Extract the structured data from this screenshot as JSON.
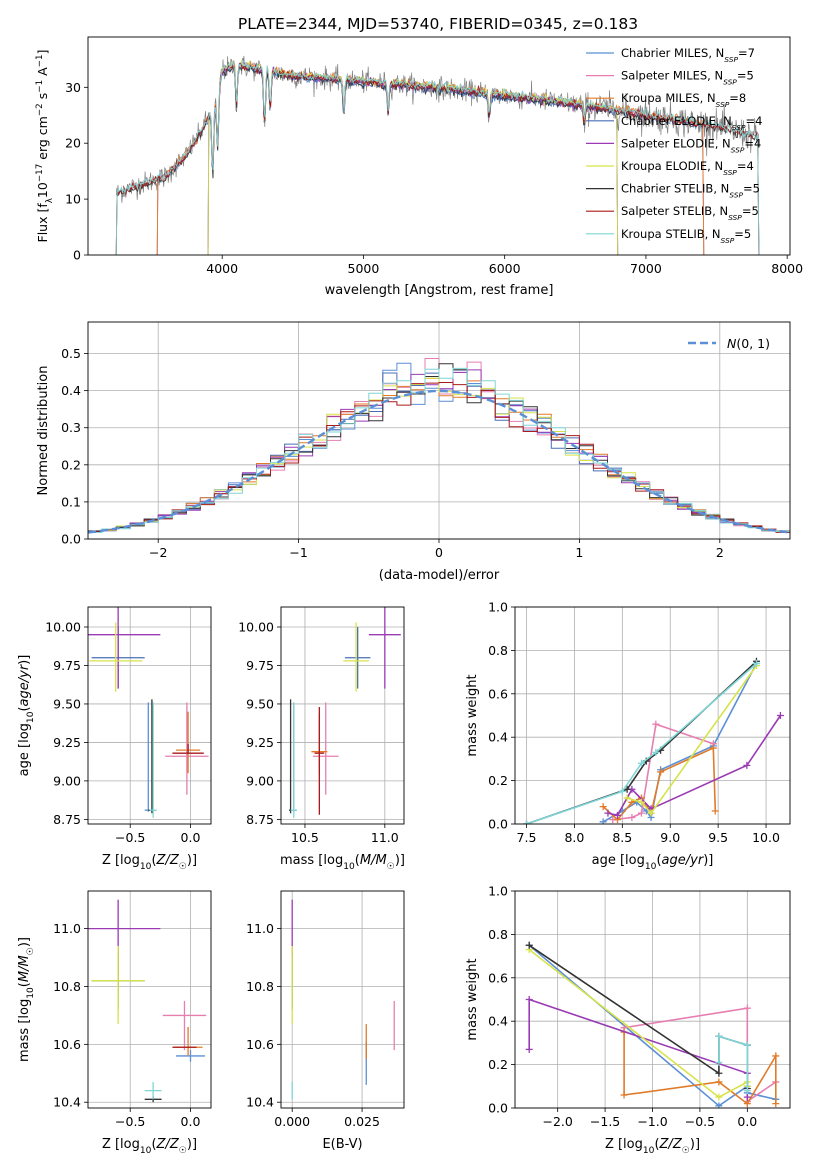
{
  "figure_title": "PLATE=2344, MJD=53740, FIBERID=0345, z=0.183",
  "colors": {
    "Chabrier MILES": "#5b8fd6",
    "Salpeter MILES": "#e67fb0",
    "Kroupa MILES": "#e07b2a",
    "Chabrier ELODIE": "#4a6fb8",
    "Salpeter ELODIE": "#9a3ab5",
    "Kroupa ELODIE": "#d6e34a",
    "Chabrier STELIB": "#333333",
    "Salpeter STELIB": "#aa1a1a",
    "Kroupa STELIB": "#7fd6d6",
    "observed": "#808080",
    "gaussian": "#5b8fd6",
    "grid": "#b0b0b0"
  },
  "chart_data": [
    {
      "id": "spectrum",
      "type": "line",
      "title": "",
      "xlabel": "wavelength [Angstrom, rest frame]",
      "ylabel": "Flux [f_λ10^-17 erg cm^-2 s^-1 A^-1]",
      "xlim": [
        3050,
        8020
      ],
      "ylim": [
        0,
        39
      ],
      "xticks": [
        4000,
        5000,
        6000,
        7000,
        8000
      ],
      "yticks": [
        0,
        10,
        20,
        30
      ],
      "grid": false,
      "legend_position": "top-right",
      "legend": [
        "Chabrier MILES, N_SSP=7",
        "Salpeter MILES, N_SSP=5",
        "Kroupa MILES, N_SSP=8",
        "Chabrier ELODIE, N_SSP=4",
        "Salpeter ELODIE, N_SSP=4",
        "Kroupa ELODIE, N_SSP=4",
        "Chabrier STELIB, N_SSP=5",
        "Salpeter STELIB, N_SSP=5",
        "Kroupa STELIB, N_SSP=5"
      ],
      "continuum": {
        "x": [
          3250,
          3400,
          3600,
          3750,
          3850,
          3950,
          4000,
          4100,
          4300,
          4500,
          4800,
          5000,
          5500,
          6000,
          6500,
          7000,
          7500,
          7800
        ],
        "y": [
          11,
          12.5,
          14,
          18,
          22,
          27,
          33,
          34,
          33,
          32,
          31.5,
          31,
          30,
          28.5,
          27,
          25,
          23,
          21
        ]
      },
      "absorption_lines": [
        {
          "x": 3933,
          "depth": 12
        },
        {
          "x": 3968,
          "depth": 10
        },
        {
          "x": 4101,
          "depth": 7
        },
        {
          "x": 4300,
          "depth": 10
        },
        {
          "x": 4340,
          "depth": 7
        },
        {
          "x": 4861,
          "depth": 6
        },
        {
          "x": 5175,
          "depth": 5
        },
        {
          "x": 5890,
          "depth": 4
        },
        {
          "x": 6563,
          "depth": 3
        }
      ],
      "model_ranges": [
        {
          "series": "Chabrier MILES",
          "x": [
            3540,
            7410
          ]
        },
        {
          "series": "Salpeter MILES",
          "x": [
            3540,
            7410
          ]
        },
        {
          "series": "Kroupa MILES",
          "x": [
            3540,
            7410
          ]
        },
        {
          "series": "Chabrier ELODIE",
          "x": [
            3900,
            6800
          ]
        },
        {
          "series": "Salpeter ELODIE",
          "x": [
            3900,
            6800
          ]
        },
        {
          "series": "Kroupa ELODIE",
          "x": [
            3900,
            6800
          ]
        },
        {
          "series": "Chabrier STELIB",
          "x": [
            3250,
            7800
          ]
        },
        {
          "series": "Salpeter STELIB",
          "x": [
            3250,
            7800
          ]
        },
        {
          "series": "Kroupa STELIB",
          "x": [
            3250,
            7800
          ]
        }
      ]
    },
    {
      "id": "residuals",
      "type": "line",
      "xlabel": "(data-model)/error",
      "ylabel": "Normed distribution",
      "xlim": [
        -2.5,
        2.5
      ],
      "ylim": [
        0,
        0.585
      ],
      "xticks": [
        -2,
        -1,
        0,
        1,
        2
      ],
      "yticks": [
        0.0,
        0.1,
        0.2,
        0.3,
        0.4,
        0.5
      ],
      "grid": true,
      "legend_position": "top-right",
      "legend": [
        "N(0,1)"
      ],
      "bin_width": 0.1
    },
    {
      "id": "age_vs_Z",
      "type": "scatter",
      "xlabel": "Z [log10(Z/Z☉)]",
      "ylabel": "age [log10(age/yr)]",
      "xlim": [
        -0.85,
        0.17
      ],
      "ylim": [
        8.72,
        10.13
      ],
      "xticks": [
        -0.5,
        0.0
      ],
      "yticks": [
        8.75,
        9.0,
        9.25,
        9.5,
        9.75,
        10.0
      ],
      "grid": true,
      "points": [
        {
          "series": "Chabrier MILES",
          "x": -0.35,
          "y": 8.81,
          "xerr": 0.03,
          "yerr": [
            0.01,
            0.7
          ]
        },
        {
          "series": "Salpeter MILES",
          "x": -0.03,
          "y": 9.16,
          "xerr": 0.18,
          "yerr": [
            0.25,
            0.35
          ]
        },
        {
          "series": "Kroupa MILES",
          "x": -0.02,
          "y": 9.2,
          "xerr": 0.1,
          "yerr": [
            0.15,
            0.25
          ]
        },
        {
          "series": "Chabrier ELODIE",
          "x": -0.6,
          "y": 9.8,
          "xerr": 0.22,
          "yerr": [
            0.2,
            0.2
          ]
        },
        {
          "series": "Salpeter ELODIE",
          "x": -0.6,
          "y": 9.95,
          "xerr": 0.35,
          "yerr": [
            0.35,
            0.18
          ]
        },
        {
          "series": "Kroupa ELODIE",
          "x": -0.62,
          "y": 9.78,
          "xerr": 0.22,
          "yerr": [
            0.2,
            0.25
          ]
        },
        {
          "series": "Chabrier STELIB",
          "x": -0.32,
          "y": 8.81,
          "xerr": 0.03,
          "yerr": [
            0.02,
            0.72
          ]
        },
        {
          "series": "Salpeter STELIB",
          "x": -0.02,
          "y": 9.18,
          "xerr": 0.13,
          "yerr": [
            0.0,
            0.06
          ]
        },
        {
          "series": "Kroupa STELIB",
          "x": -0.31,
          "y": 8.81,
          "xerr": 0.03,
          "yerr": [
            0.05,
            0.7
          ]
        }
      ]
    },
    {
      "id": "age_vs_mass",
      "type": "scatter",
      "xlabel": "mass [log10(M/M☉)]",
      "ylabel": "",
      "xlim": [
        10.35,
        11.12
      ],
      "ylim": [
        8.72,
        10.13
      ],
      "xticks": [
        10.5,
        11.0
      ],
      "yticks": [
        8.75,
        9.0,
        9.25,
        9.5,
        9.75,
        10.0
      ],
      "grid": true,
      "points": [
        {
          "series": "Chabrier MILES",
          "x": 10.43,
          "y": 8.81,
          "xerr": 0.02,
          "yerr": [
            0.01,
            0.7
          ]
        },
        {
          "series": "Salpeter MILES",
          "x": 10.63,
          "y": 9.16,
          "xerr": 0.08,
          "yerr": [
            0.25,
            0.35
          ]
        },
        {
          "series": "Kroupa MILES",
          "x": 10.59,
          "y": 9.19,
          "xerr": 0.05,
          "yerr": [
            0.15,
            0.25
          ]
        },
        {
          "series": "Chabrier ELODIE",
          "x": 10.83,
          "y": 9.8,
          "xerr": 0.08,
          "yerr": [
            0.2,
            0.2
          ]
        },
        {
          "series": "Salpeter ELODIE",
          "x": 11.0,
          "y": 9.95,
          "xerr": 0.1,
          "yerr": [
            0.35,
            0.18
          ]
        },
        {
          "series": "Kroupa ELODIE",
          "x": 10.82,
          "y": 9.78,
          "xerr": 0.08,
          "yerr": [
            0.2,
            0.25
          ]
        },
        {
          "series": "Chabrier STELIB",
          "x": 10.41,
          "y": 8.81,
          "xerr": 0.01,
          "yerr": [
            0.02,
            0.72
          ]
        },
        {
          "series": "Salpeter STELIB",
          "x": 10.59,
          "y": 9.18,
          "xerr": 0.03,
          "yerr": [
            0.4,
            0.3
          ]
        },
        {
          "series": "Kroupa STELIB",
          "x": 10.43,
          "y": 8.81,
          "xerr": 0.02,
          "yerr": [
            0.05,
            0.7
          ]
        }
      ]
    },
    {
      "id": "massweight_vs_age",
      "type": "line",
      "xlabel": "age [log10(age/yr)]",
      "ylabel": "mass weight",
      "xlim": [
        7.38,
        10.25
      ],
      "ylim": [
        0.0,
        1.0
      ],
      "xticks": [
        7.5,
        8.0,
        8.5,
        9.0,
        9.5,
        10.0
      ],
      "yticks": [
        0.0,
        0.2,
        0.4,
        0.6,
        0.8,
        1.0
      ],
      "grid": true,
      "series": [
        {
          "name": "Chabrier MILES",
          "x": [
            8.3,
            8.5,
            8.65,
            8.75,
            8.8,
            8.9,
            9.45,
            9.9
          ],
          "y": [
            0.01,
            0.06,
            0.1,
            0.06,
            0.03,
            0.25,
            0.36,
            0.74
          ]
        },
        {
          "name": "Salpeter MILES",
          "x": [
            8.4,
            8.6,
            8.7,
            8.85,
            9.45
          ],
          "y": [
            0.02,
            0.03,
            0.05,
            0.46,
            0.37
          ]
        },
        {
          "name": "Kroupa MILES",
          "x": [
            8.3,
            8.45,
            8.6,
            8.7,
            8.8,
            8.9,
            9.45,
            9.47
          ],
          "y": [
            0.08,
            0.02,
            0.1,
            0.12,
            0.05,
            0.24,
            0.35,
            0.06
          ]
        },
        {
          "name": "Salpeter ELODIE",
          "x": [
            8.35,
            8.45,
            8.6,
            8.8,
            9.8,
            10.15
          ],
          "y": [
            0.05,
            0.04,
            0.16,
            0.07,
            0.27,
            0.5
          ]
        },
        {
          "name": "Kroupa ELODIE",
          "x": [
            8.55,
            8.7,
            8.8,
            9.9
          ],
          "y": [
            0.12,
            0.1,
            0.05,
            0.73
          ]
        },
        {
          "name": "Chabrier STELIB",
          "x": [
            7.5,
            8.55,
            8.75,
            8.9,
            9.9
          ],
          "y": [
            0.0,
            0.16,
            0.29,
            0.34,
            0.75
          ]
        },
        {
          "name": "Kroupa STELIB",
          "x": [
            7.5,
            8.5,
            8.7,
            8.85,
            9.9
          ],
          "y": [
            0.0,
            0.15,
            0.28,
            0.33,
            0.74
          ]
        }
      ]
    },
    {
      "id": "mass_vs_Z",
      "type": "scatter",
      "xlabel": "Z [log10(Z/Z☉)]",
      "ylabel": "mass [log10(M/M☉)]",
      "xlim": [
        -0.85,
        0.17
      ],
      "ylim": [
        10.38,
        11.13
      ],
      "xticks": [
        -0.5,
        0.0
      ],
      "yticks": [
        10.4,
        10.6,
        10.8,
        11.0
      ],
      "grid": true,
      "points": [
        {
          "series": "Chabrier MILES",
          "x": 0.0,
          "y": 10.56,
          "xerr": 0.12,
          "yerr": [
            0.02,
            0.02
          ]
        },
        {
          "series": "Salpeter MILES",
          "x": -0.05,
          "y": 10.7,
          "xerr": 0.18,
          "yerr": [
            0.12,
            0.05
          ]
        },
        {
          "series": "Kroupa MILES",
          "x": -0.02,
          "y": 10.59,
          "xerr": 0.12,
          "yerr": [
            0.03,
            0.07
          ]
        },
        {
          "series": "Chabrier ELODIE",
          "x": -0.6,
          "y": 10.82,
          "xerr": 0.22,
          "yerr": [
            0.1,
            0.1
          ]
        },
        {
          "series": "Salpeter ELODIE",
          "x": -0.6,
          "y": 11.0,
          "xerr": 0.35,
          "yerr": [
            0.2,
            0.1
          ]
        },
        {
          "series": "Kroupa ELODIE",
          "x": -0.6,
          "y": 10.82,
          "xerr": 0.22,
          "yerr": [
            0.15,
            0.12
          ]
        },
        {
          "series": "Chabrier STELIB",
          "x": -0.31,
          "y": 10.41,
          "xerr": 0.07,
          "yerr": [
            0.01,
            0.01
          ]
        },
        {
          "series": "Salpeter STELIB",
          "x": -0.05,
          "y": 10.59,
          "xerr": 0.1,
          "yerr": [
            0.0,
            0.0
          ]
        },
        {
          "series": "Kroupa STELIB",
          "x": -0.31,
          "y": 10.44,
          "xerr": 0.07,
          "yerr": [
            0.03,
            0.03
          ]
        }
      ]
    },
    {
      "id": "mass_vs_EBV",
      "type": "scatter",
      "xlabel": "E(B-V)",
      "ylabel": "",
      "xlim": [
        -0.004,
        0.04
      ],
      "ylim": [
        10.38,
        11.13
      ],
      "xticks": [
        0.0,
        0.025
      ],
      "xtick_labels": [
        "0.000",
        "0.025"
      ],
      "yticks": [
        10.4,
        10.6,
        10.8,
        11.0
      ],
      "grid": true,
      "points": [
        {
          "series": "Chabrier MILES",
          "x": 0.0265,
          "y": 10.56,
          "yerr": [
            0.1,
            0.05
          ]
        },
        {
          "series": "Salpeter MILES",
          "x": 0.0365,
          "y": 10.68,
          "yerr": [
            0.1,
            0.07
          ]
        },
        {
          "series": "Kroupa MILES",
          "x": 0.0265,
          "y": 10.6,
          "yerr": [
            0.05,
            0.07
          ]
        },
        {
          "series": "Chabrier ELODIE",
          "x": 0.0,
          "y": 10.82,
          "yerr": [
            0.1,
            0.1
          ]
        },
        {
          "series": "Salpeter ELODIE",
          "x": 0.0,
          "y": 11.0,
          "yerr": [
            0.1,
            0.1
          ]
        },
        {
          "series": "Kroupa ELODIE",
          "x": 0.0,
          "y": 10.82,
          "yerr": [
            0.15,
            0.12
          ]
        },
        {
          "series": "Kroupa STELIB",
          "x": 0.0,
          "y": 10.44,
          "yerr": [
            0.03,
            0.03
          ]
        }
      ]
    },
    {
      "id": "massweight_vs_Z",
      "type": "line",
      "xlabel": "Z [log10(Z/Z☉)]",
      "ylabel": "mass weight",
      "xlim": [
        -2.45,
        0.45
      ],
      "ylim": [
        0.0,
        1.0
      ],
      "xticks": [
        -2.0,
        -1.5,
        -1.0,
        -0.5,
        0.0
      ],
      "yticks": [
        0.0,
        0.2,
        0.4,
        0.6,
        0.8,
        1.0
      ],
      "grid": true,
      "series": [
        {
          "name": "Chabrier MILES",
          "x": [
            -2.3,
            -0.3,
            0.0,
            0.0,
            0.3
          ],
          "y": [
            0.75,
            0.01,
            0.1,
            0.07,
            0.04
          ]
        },
        {
          "name": "Salpeter MILES",
          "x": [
            -1.3,
            0.0,
            0.0,
            0.3
          ],
          "y": [
            0.37,
            0.46,
            0.03,
            0.12
          ]
        },
        {
          "name": "Kroupa MILES",
          "x": [
            -1.3,
            -1.3,
            -0.3,
            0.0,
            0.3,
            0.3
          ],
          "y": [
            0.35,
            0.06,
            0.12,
            0.02,
            0.24,
            0.02
          ]
        },
        {
          "name": "Salpeter ELODIE",
          "x": [
            -2.3,
            -2.3,
            0.0,
            0.0
          ],
          "y": [
            0.27,
            0.5,
            0.16,
            0.05
          ]
        },
        {
          "name": "Kroupa ELODIE",
          "x": [
            -2.3,
            -0.3,
            0.0,
            0.0
          ],
          "y": [
            0.73,
            0.05,
            0.12,
            0.1
          ]
        },
        {
          "name": "Chabrier STELIB",
          "x": [
            -2.3,
            -0.3,
            -0.3,
            0.0,
            0.0
          ],
          "y": [
            0.75,
            0.16,
            0.33,
            0.29,
            0.09
          ]
        },
        {
          "name": "Kroupa STELIB",
          "x": [
            -0.3,
            -0.3,
            0.0,
            0.0
          ],
          "y": [
            0.21,
            0.33,
            0.29,
            0.08
          ]
        }
      ]
    }
  ]
}
